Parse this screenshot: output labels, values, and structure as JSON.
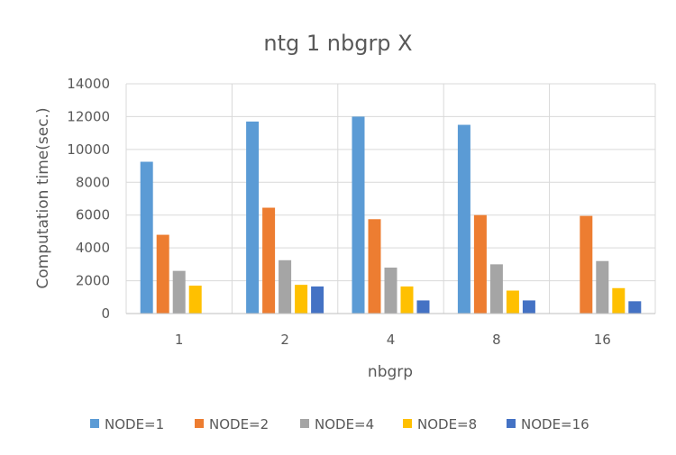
{
  "chart_data": {
    "type": "bar",
    "title": "ntg 1 nbgrp X",
    "xlabel": "nbgrp",
    "ylabel": "Computation time(sec.)",
    "categories": [
      "1",
      "2",
      "4",
      "8",
      "16"
    ],
    "ylim": [
      0,
      14000
    ],
    "yticks": [
      0,
      2000,
      4000,
      6000,
      8000,
      10000,
      12000,
      14000
    ],
    "grid": true,
    "legend_position": "bottom",
    "series": [
      {
        "name": "NODE=1",
        "color": "#5B9BD5",
        "values": [
          9250,
          11700,
          12000,
          11500,
          null
        ]
      },
      {
        "name": "NODE=2",
        "color": "#ED7D31",
        "values": [
          4800,
          6450,
          5750,
          6000,
          5950
        ]
      },
      {
        "name": "NODE=4",
        "color": "#A5A5A5",
        "values": [
          2600,
          3250,
          2800,
          3000,
          3200
        ]
      },
      {
        "name": "NODE=8",
        "color": "#FFC000",
        "values": [
          1700,
          1750,
          1650,
          1400,
          1550
        ]
      },
      {
        "name": "NODE=16",
        "color": "#4472C4",
        "values": [
          null,
          1650,
          800,
          800,
          750
        ]
      }
    ]
  }
}
